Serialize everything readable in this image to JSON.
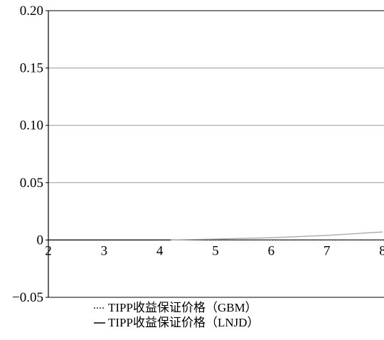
{
  "chart_data": {
    "type": "line",
    "title": "",
    "xlabel": "",
    "ylabel": "",
    "xlim": [
      2,
      8
    ],
    "ylim": [
      -0.05,
      0.2
    ],
    "x_ticks": [
      2,
      3,
      4,
      5,
      6,
      7,
      8
    ],
    "x_tick_labels": [
      "2",
      "3",
      "4",
      "5",
      "6",
      "7",
      "8"
    ],
    "y_ticks": [
      -0.05,
      0,
      0.05,
      0.1,
      0.15,
      0.2
    ],
    "y_tick_labels": [
      "−0.05",
      "0",
      "0.05",
      "0.10",
      "0.15",
      "0.20"
    ],
    "grid": "horizontal",
    "legend_position": "bottom",
    "series": [
      {
        "name": "TIPP收益保证价格（GBM）",
        "style": "dotted",
        "color": "#555555",
        "x": [
          4.2,
          5,
          6,
          7,
          8
        ],
        "y": [
          0.0,
          0.0,
          0.0,
          0.0,
          0.0
        ]
      },
      {
        "name": "TIPP收益保证价格（LNJD）",
        "style": "solid",
        "color": "#aaaaaa",
        "x": [
          4.2,
          5,
          6,
          7,
          8
        ],
        "y": [
          0.0,
          0.0008,
          0.002,
          0.004,
          0.007
        ]
      }
    ]
  }
}
